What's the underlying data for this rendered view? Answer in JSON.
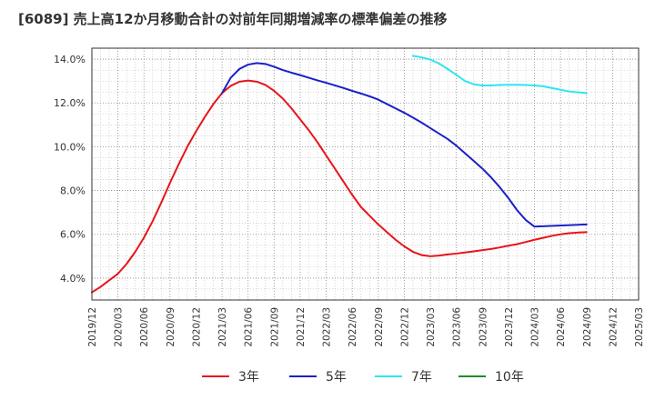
{
  "chart_data": {
    "type": "line",
    "title": "[6089]  売上高12か月移動合計の対前年同期増減率の標準偏差の推移",
    "xlabel": "",
    "ylabel": "",
    "x_ticks": [
      "2019/12",
      "2020/03",
      "2020/06",
      "2020/09",
      "2020/12",
      "2021/03",
      "2021/06",
      "2021/09",
      "2021/12",
      "2022/03",
      "2022/06",
      "2022/09",
      "2022/12",
      "2023/03",
      "2023/06",
      "2023/09",
      "2023/12",
      "2024/03",
      "2024/06",
      "2024/09",
      "2024/12",
      "2025/03"
    ],
    "y_ticks": [
      "4.0%",
      "6.0%",
      "8.0%",
      "10.0%",
      "12.0%",
      "14.0%"
    ],
    "y_tick_values": [
      4,
      6,
      8,
      10,
      12,
      14
    ],
    "xlim": [
      "2019/12",
      "2025/03"
    ],
    "ylim": [
      3.0,
      14.5
    ],
    "grid": true,
    "legend_position": "bottom",
    "series": [
      {
        "name": "3年",
        "color": "#e8141a",
        "points": [
          [
            "2019/12",
            3.35
          ],
          [
            "2020/01",
            3.6
          ],
          [
            "2020/02",
            3.9
          ],
          [
            "2020/03",
            4.2
          ],
          [
            "2020/04",
            4.65
          ],
          [
            "2020/05",
            5.2
          ],
          [
            "2020/06",
            5.85
          ],
          [
            "2020/07",
            6.6
          ],
          [
            "2020/08",
            7.45
          ],
          [
            "2020/09",
            8.35
          ],
          [
            "2020/10",
            9.2
          ],
          [
            "2020/11",
            10.0
          ],
          [
            "2020/12",
            10.7
          ],
          [
            "2021/01",
            11.35
          ],
          [
            "2021/02",
            11.95
          ],
          [
            "2021/03",
            12.45
          ],
          [
            "2021/04",
            12.78
          ],
          [
            "2021/05",
            12.97
          ],
          [
            "2021/06",
            13.02
          ],
          [
            "2021/07",
            12.97
          ],
          [
            "2021/08",
            12.82
          ],
          [
            "2021/09",
            12.55
          ],
          [
            "2021/10",
            12.2
          ],
          [
            "2021/11",
            11.75
          ],
          [
            "2021/12",
            11.25
          ],
          [
            "2022/01",
            10.75
          ],
          [
            "2022/02",
            10.2
          ],
          [
            "2022/03",
            9.6
          ],
          [
            "2022/04",
            9.0
          ],
          [
            "2022/05",
            8.4
          ],
          [
            "2022/06",
            7.8
          ],
          [
            "2022/07",
            7.25
          ],
          [
            "2022/08",
            6.85
          ],
          [
            "2022/09",
            6.45
          ],
          [
            "2022/10",
            6.1
          ],
          [
            "2022/11",
            5.75
          ],
          [
            "2022/12",
            5.45
          ],
          [
            "2023/01",
            5.2
          ],
          [
            "2023/02",
            5.05
          ],
          [
            "2023/03",
            5.0
          ],
          [
            "2023/04",
            5.03
          ],
          [
            "2023/05",
            5.08
          ],
          [
            "2023/06",
            5.12
          ],
          [
            "2023/07",
            5.17
          ],
          [
            "2023/08",
            5.22
          ],
          [
            "2023/09",
            5.28
          ],
          [
            "2023/10",
            5.33
          ],
          [
            "2023/11",
            5.4
          ],
          [
            "2023/12",
            5.48
          ],
          [
            "2024/01",
            5.55
          ],
          [
            "2024/02",
            5.65
          ],
          [
            "2024/03",
            5.75
          ],
          [
            "2024/04",
            5.84
          ],
          [
            "2024/05",
            5.93
          ],
          [
            "2024/06",
            6.0
          ],
          [
            "2024/07",
            6.05
          ],
          [
            "2024/08",
            6.08
          ],
          [
            "2024/09",
            6.1
          ]
        ]
      },
      {
        "name": "5年",
        "color": "#1a20c8",
        "points": [
          [
            "2021/03",
            12.45
          ],
          [
            "2021/04",
            13.15
          ],
          [
            "2021/05",
            13.55
          ],
          [
            "2021/06",
            13.75
          ],
          [
            "2021/07",
            13.82
          ],
          [
            "2021/08",
            13.78
          ],
          [
            "2021/09",
            13.65
          ],
          [
            "2021/10",
            13.5
          ],
          [
            "2021/11",
            13.38
          ],
          [
            "2021/12",
            13.27
          ],
          [
            "2022/01",
            13.15
          ],
          [
            "2022/02",
            13.03
          ],
          [
            "2022/03",
            12.92
          ],
          [
            "2022/04",
            12.8
          ],
          [
            "2022/05",
            12.68
          ],
          [
            "2022/06",
            12.55
          ],
          [
            "2022/07",
            12.43
          ],
          [
            "2022/08",
            12.3
          ],
          [
            "2022/09",
            12.15
          ],
          [
            "2022/10",
            11.95
          ],
          [
            "2022/11",
            11.75
          ],
          [
            "2022/12",
            11.55
          ],
          [
            "2023/01",
            11.33
          ],
          [
            "2023/02",
            11.1
          ],
          [
            "2023/03",
            10.85
          ],
          [
            "2023/04",
            10.6
          ],
          [
            "2023/05",
            10.35
          ],
          [
            "2023/06",
            10.05
          ],
          [
            "2023/07",
            9.7
          ],
          [
            "2023/08",
            9.35
          ],
          [
            "2023/09",
            9.0
          ],
          [
            "2023/10",
            8.6
          ],
          [
            "2023/11",
            8.15
          ],
          [
            "2023/12",
            7.65
          ],
          [
            "2024/01",
            7.1
          ],
          [
            "2024/02",
            6.65
          ],
          [
            "2024/03",
            6.35
          ],
          [
            "2024/09",
            6.45
          ]
        ]
      },
      {
        "name": "7年",
        "color": "#2ee6ee",
        "points": [
          [
            "2023/01",
            14.15
          ],
          [
            "2023/02",
            14.08
          ],
          [
            "2023/03",
            13.98
          ],
          [
            "2023/04",
            13.8
          ],
          [
            "2023/05",
            13.55
          ],
          [
            "2023/06",
            13.28
          ],
          [
            "2023/07",
            13.0
          ],
          [
            "2023/08",
            12.85
          ],
          [
            "2023/09",
            12.8
          ],
          [
            "2023/10",
            12.8
          ],
          [
            "2023/11",
            12.82
          ],
          [
            "2023/12",
            12.83
          ],
          [
            "2024/01",
            12.83
          ],
          [
            "2024/02",
            12.82
          ],
          [
            "2024/03",
            12.8
          ],
          [
            "2024/04",
            12.76
          ],
          [
            "2024/05",
            12.68
          ],
          [
            "2024/06",
            12.6
          ],
          [
            "2024/07",
            12.52
          ],
          [
            "2024/09",
            12.45
          ]
        ]
      },
      {
        "name": "10年",
        "color": "#1f8c1f",
        "points": []
      }
    ]
  }
}
